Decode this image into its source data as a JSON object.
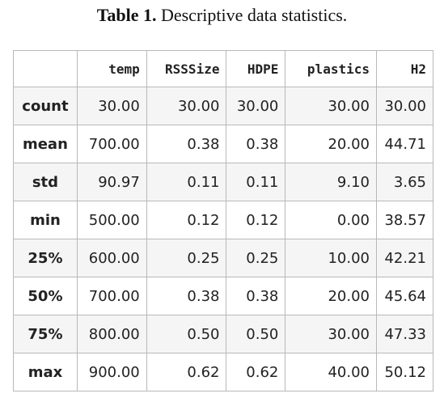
{
  "caption": {
    "label": "Table 1.",
    "text": "Descriptive data statistics."
  },
  "table": {
    "header": [
      "temp",
      "RSSSize",
      "HDPE",
      "plastics",
      "H2"
    ],
    "rows": [
      {
        "label": "count",
        "cells": [
          "30.00",
          "30.00",
          "30.00",
          "30.00",
          "30.00"
        ]
      },
      {
        "label": "mean",
        "cells": [
          "700.00",
          "0.38",
          "0.38",
          "20.00",
          "44.71"
        ]
      },
      {
        "label": "std",
        "cells": [
          "90.97",
          "0.11",
          "0.11",
          "9.10",
          "3.65"
        ]
      },
      {
        "label": "min",
        "cells": [
          "500.00",
          "0.12",
          "0.12",
          "0.00",
          "38.57"
        ]
      },
      {
        "label": "25%",
        "cells": [
          "600.00",
          "0.25",
          "0.25",
          "10.00",
          "42.21"
        ]
      },
      {
        "label": "50%",
        "cells": [
          "700.00",
          "0.38",
          "0.38",
          "20.00",
          "45.64"
        ]
      },
      {
        "label": "75%",
        "cells": [
          "800.00",
          "0.50",
          "0.50",
          "30.00",
          "47.33"
        ]
      },
      {
        "label": "max",
        "cells": [
          "900.00",
          "0.62",
          "0.62",
          "40.00",
          "50.12"
        ]
      }
    ]
  }
}
